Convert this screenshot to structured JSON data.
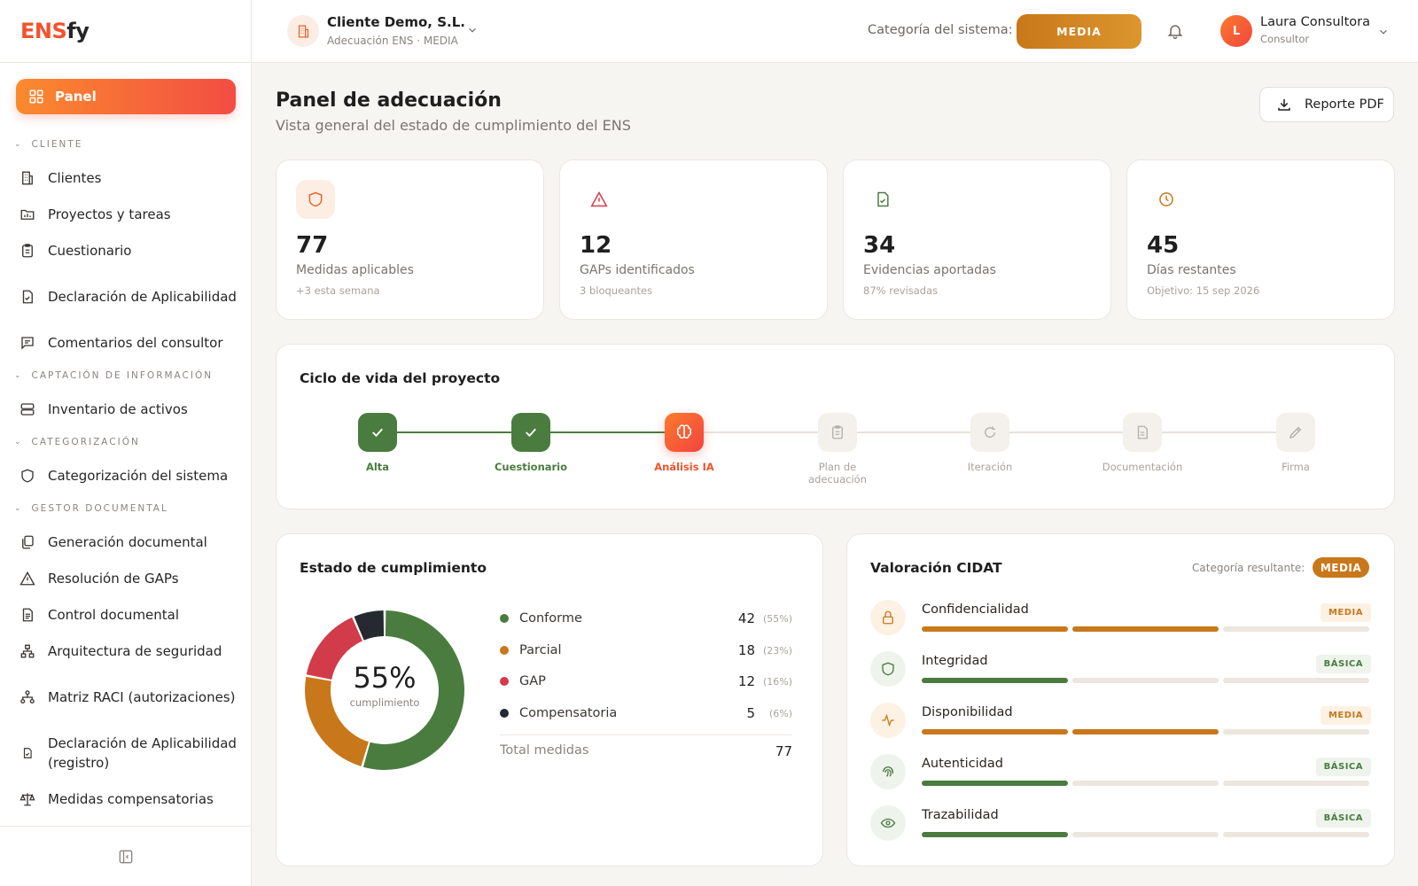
{
  "app": {
    "logo_a": "ENS",
    "logo_b": "fy"
  },
  "sidebar": {
    "panel_label": "Panel",
    "sections": [
      {
        "title": "CLIENTE",
        "items": [
          {
            "label": "Clientes",
            "icon": "building-icon"
          },
          {
            "label": "Proyectos y tareas",
            "icon": "folder-chart-icon"
          },
          {
            "label": "Cuestionario",
            "icon": "clipboard-icon"
          },
          {
            "label": "Declaración de Aplicabilidad",
            "icon": "file-check-icon"
          },
          {
            "label": "Comentarios del consultor",
            "icon": "message-icon"
          }
        ]
      },
      {
        "title": "CAPTACIÓN DE INFORMACIÓN",
        "items": [
          {
            "label": "Inventario de activos",
            "icon": "server-icon"
          }
        ]
      },
      {
        "title": "CATEGORIZACIÓN",
        "items": [
          {
            "label": "Categorización del sistema",
            "icon": "shield-icon"
          }
        ]
      },
      {
        "title": "GESTOR DOCUMENTAL",
        "items": [
          {
            "label": "Generación documental",
            "icon": "copy-icon"
          },
          {
            "label": "Resolución de GAPs",
            "icon": "warning-icon"
          },
          {
            "label": "Control documental",
            "icon": "file-text-icon"
          },
          {
            "label": "Arquitectura de seguridad",
            "icon": "network-icon"
          },
          {
            "label": "Matriz RACI (autorizaciones)",
            "icon": "org-chart-icon"
          },
          {
            "label": "Declaración de Aplicabilidad (registro)",
            "icon": "file-check-small-icon"
          },
          {
            "label": "Medidas compensatorias",
            "icon": "scale-icon"
          }
        ]
      }
    ]
  },
  "header": {
    "client_name": "Cliente Demo, S.L.",
    "client_sub": "Adecuación ENS · MEDIA",
    "category_label": "Categoría del sistema:",
    "category_value": "MEDIA",
    "user_initial": "L",
    "user_name": "Laura Consultora",
    "user_role": "Consultor"
  },
  "main": {
    "title": "Panel de adecuación",
    "subtitle": "Vista general del estado de cumplimiento del ENS",
    "pdf_button": "Reporte PDF"
  },
  "stats": [
    {
      "value": "77",
      "label": "Medidas aplicables",
      "note": "+3 esta semana",
      "icon": "shield-icon",
      "color": "#e8662c",
      "bg": "#fdeee4"
    },
    {
      "value": "12",
      "label": "GAPs identificados",
      "note": "3 bloqueantes",
      "icon": "warning-icon",
      "color": "#d23b4a",
      "bg": "#ffffff"
    },
    {
      "value": "34",
      "label": "Evidencias aportadas",
      "note": "87% revisadas",
      "icon": "file-check-icon",
      "color": "#4a7c3f",
      "bg": "#ffffff"
    },
    {
      "value": "45",
      "label": "Días restantes",
      "note": "Objetivo: 15 sep 2026",
      "icon": "clock-icon",
      "color": "#c8781a",
      "bg": "#ffffff"
    }
  ],
  "lifecycle": {
    "title": "Ciclo de vida del proyecto",
    "steps": [
      {
        "label": "Alta",
        "state": "done",
        "icon": "check-icon"
      },
      {
        "label": "Cuestionario",
        "state": "done",
        "icon": "check-icon"
      },
      {
        "label": "Análisis IA",
        "state": "current",
        "icon": "brain-icon"
      },
      {
        "label": "Plan de adecuación",
        "state": "pending",
        "icon": "clipboard-icon"
      },
      {
        "label": "Iteración",
        "state": "pending",
        "icon": "refresh-icon"
      },
      {
        "label": "Documentación",
        "state": "pending",
        "icon": "file-icon"
      },
      {
        "label": "Firma",
        "state": "pending",
        "icon": "signature-icon"
      }
    ]
  },
  "compliance": {
    "title": "Estado de cumplimiento",
    "percent_label": "55%",
    "percent_sub": "cumplimiento",
    "items": [
      {
        "name": "Conforme",
        "count": 42,
        "pct": "(55%)",
        "color": "#4a7c3f"
      },
      {
        "name": "Parcial",
        "count": 18,
        "pct": "(23%)",
        "color": "#c8781a"
      },
      {
        "name": "GAP",
        "count": 12,
        "pct": "(16%)",
        "color": "#d23b4a"
      },
      {
        "name": "Compensatoria",
        "count": 5,
        "pct": "(6%)",
        "color": "#262a30"
      }
    ],
    "total_label": "Total medidas",
    "total_value": "77"
  },
  "cidat": {
    "title": "Valoración CIDAT",
    "result_label": "Categoría resultante:",
    "result_value": "MEDIA",
    "dimensions": [
      {
        "name": "Confidencialidad",
        "level": "MEDIA",
        "filled": 2,
        "icon": "lock-icon"
      },
      {
        "name": "Integridad",
        "level": "BÁSICA",
        "filled": 1,
        "icon": "shield-icon"
      },
      {
        "name": "Disponibilidad",
        "level": "MEDIA",
        "filled": 2,
        "icon": "activity-icon"
      },
      {
        "name": "Autenticidad",
        "level": "BÁSICA",
        "filled": 1,
        "icon": "fingerprint-icon"
      },
      {
        "name": "Trazabilidad",
        "level": "BÁSICA",
        "filled": 1,
        "icon": "eye-icon"
      }
    ]
  },
  "colors": {
    "accent": "#f0542d",
    "media": "#c8781a",
    "basica": "#4a7c3f",
    "gap": "#d23b4a"
  }
}
